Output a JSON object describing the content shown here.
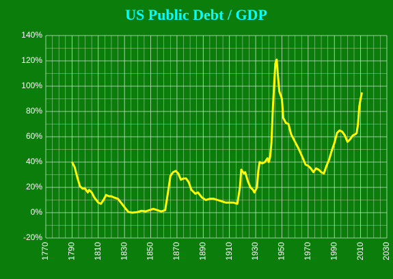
{
  "chart_data": {
    "type": "line",
    "title": "US Public Debt / GDP",
    "x": [
      1790,
      1792,
      1794,
      1796,
      1798,
      1800,
      1802,
      1803,
      1805,
      1807,
      1810,
      1812,
      1814,
      1816,
      1818,
      1820,
      1822,
      1825,
      1828,
      1831,
      1833,
      1836,
      1840,
      1843,
      1846,
      1849,
      1852,
      1855,
      1858,
      1861,
      1863,
      1865,
      1867,
      1869,
      1871,
      1873,
      1875,
      1877,
      1879,
      1881,
      1884,
      1886,
      1889,
      1892,
      1895,
      1898,
      1901,
      1904,
      1907,
      1910,
      1913,
      1916,
      1918,
      1919,
      1921,
      1922,
      1924,
      1926,
      1928,
      1929,
      1931,
      1932,
      1933,
      1935,
      1937,
      1939,
      1940,
      1941,
      1942,
      1943,
      1944,
      1945,
      1946,
      1947,
      1948,
      1949,
      1950,
      1951,
      1953,
      1955,
      1957,
      1960,
      1963,
      1966,
      1968,
      1970,
      1972,
      1974,
      1976,
      1978,
      1980,
      1982,
      1984,
      1986,
      1988,
      1990,
      1992,
      1994,
      1996,
      1998,
      2000,
      2002,
      2004,
      2006,
      2007,
      2008,
      2009,
      2010,
      2011
    ],
    "series": [
      {
        "color": "#ffff00",
        "values": [
          40,
          36,
          28,
          21,
          19,
          19,
          16,
          18,
          16,
          12,
          8,
          7,
          10,
          14,
          13,
          13,
          12,
          11,
          7,
          3,
          0.5,
          0,
          0.5,
          1.5,
          1,
          2,
          3,
          2,
          1,
          2,
          15,
          29,
          32,
          33,
          31,
          26,
          27,
          27,
          24,
          18,
          15,
          16,
          12,
          10,
          11,
          11,
          10,
          9,
          8,
          8,
          8,
          7,
          20,
          34,
          31,
          32,
          25,
          20,
          18,
          16,
          20,
          33,
          40,
          39,
          40,
          43,
          40,
          44,
          55,
          80,
          100,
          118,
          121,
          108,
          96,
          93,
          90,
          75,
          71,
          70,
          62,
          56,
          50,
          43,
          38,
          37,
          35,
          32,
          35,
          34,
          32,
          31,
          37,
          42,
          49,
          55,
          63,
          65,
          64,
          61,
          56,
          58,
          61,
          62,
          63,
          70,
          84,
          90,
          95
        ]
      }
    ],
    "xlim": [
      1770,
      2030
    ],
    "xticks": [
      1770,
      1790,
      1810,
      1830,
      1850,
      1870,
      1890,
      1910,
      1930,
      1950,
      1970,
      1990,
      2010,
      2030
    ],
    "ylim": [
      -20,
      140
    ],
    "yticks": [
      {
        "value": -20,
        "label": "-20%"
      },
      {
        "value": 0,
        "label": "0%"
      },
      {
        "value": 20,
        "label": "20%"
      },
      {
        "value": 40,
        "label": "40%"
      },
      {
        "value": 60,
        "label": "60%"
      },
      {
        "value": 80,
        "label": "80%"
      },
      {
        "value": 100,
        "label": "100%"
      },
      {
        "value": 120,
        "label": "120%"
      },
      {
        "value": 140,
        "label": "140%"
      }
    ],
    "xminorticks": [
      1775,
      1780,
      1785,
      1795,
      1800,
      1805,
      1815,
      1820,
      1825,
      1835,
      1840,
      1845,
      1855,
      1860,
      1865,
      1875,
      1880,
      1885,
      1895,
      1900,
      1905,
      1915,
      1920,
      1925,
      1935,
      1940,
      1945,
      1955,
      1960,
      1965,
      1975,
      1980,
      1985,
      1995,
      2000,
      2005,
      2015,
      2020,
      2025
    ],
    "yminorticks": [
      -10,
      10,
      30,
      50,
      70,
      90,
      110,
      130
    ],
    "grid": true
  }
}
